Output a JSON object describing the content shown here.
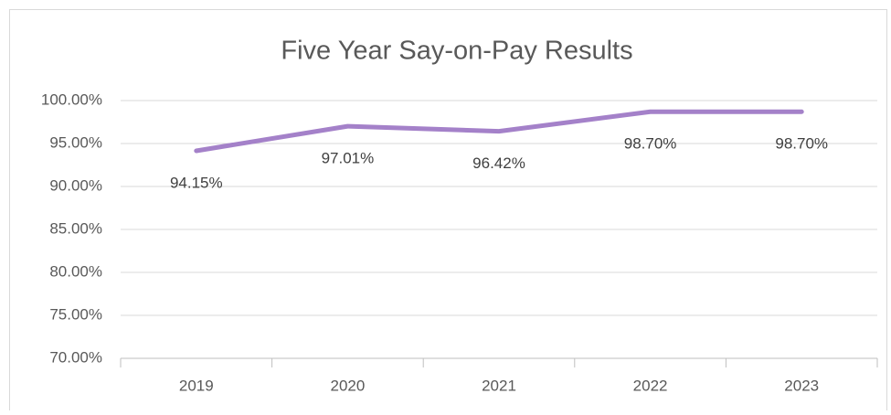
{
  "chart_data": {
    "type": "line",
    "title": "Five Year Say-on-Pay Results",
    "categories": [
      "2019",
      "2020",
      "2021",
      "2022",
      "2023"
    ],
    "series": [
      {
        "name": "Say-on-Pay",
        "color": "#a481c9",
        "values": [
          94.15,
          97.01,
          96.42,
          98.7,
          98.7
        ],
        "value_labels": [
          "94.15%",
          "97.01%",
          "96.42%",
          "98.70%",
          "98.70%"
        ]
      }
    ],
    "ylim": [
      70,
      100
    ],
    "yticks": [
      {
        "value": 70,
        "label": "70.00%"
      },
      {
        "value": 75,
        "label": "75.00%"
      },
      {
        "value": 80,
        "label": "80.00%"
      },
      {
        "value": 85,
        "label": "85.00%"
      },
      {
        "value": 90,
        "label": "90.00%"
      },
      {
        "value": 95,
        "label": "95.00%"
      },
      {
        "value": 100,
        "label": "100.00%"
      }
    ],
    "grid": true
  }
}
